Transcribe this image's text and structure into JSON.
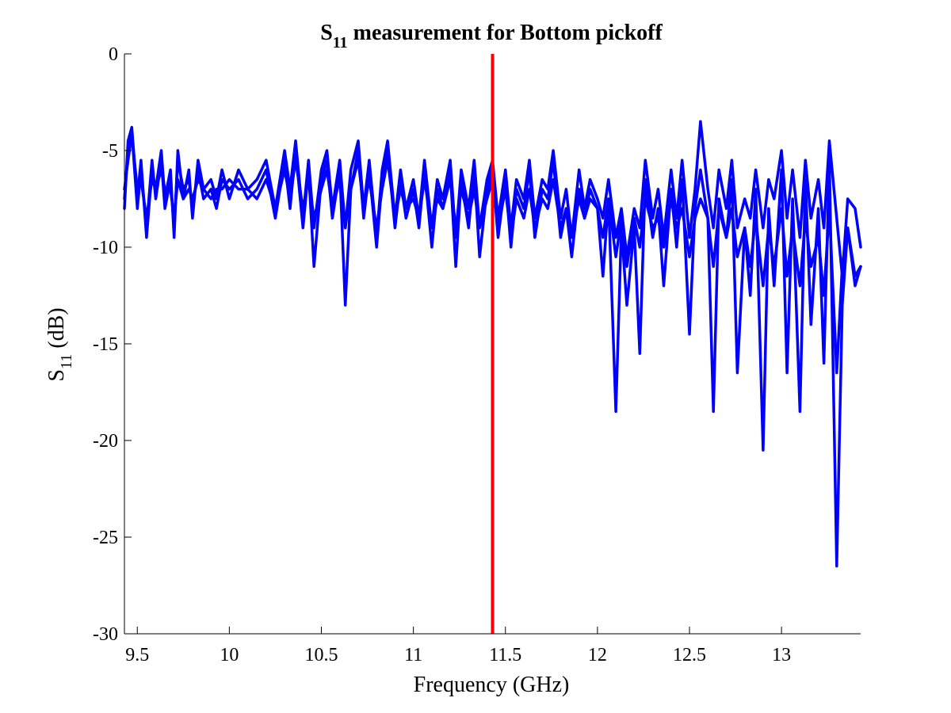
{
  "chart_data": {
    "type": "line",
    "title": {
      "main": "S",
      "sub": "11",
      "rest": " measurement for Bottom pickoff"
    },
    "xlabel": "Frequency (GHz)",
    "ylabel": {
      "main": "S",
      "sub": "11",
      "rest": " (dB)"
    },
    "xlim": [
      9.43,
      13.43
    ],
    "ylim": [
      -30,
      0
    ],
    "xticks": [
      9.5,
      10,
      10.5,
      11,
      11.5,
      12,
      12.5,
      13
    ],
    "xtick_labels": [
      "9.5",
      "10",
      "10.5",
      "11",
      "11.5",
      "12",
      "12.5",
      "13"
    ],
    "yticks": [
      0,
      -5,
      -10,
      -15,
      -20,
      -25,
      -30
    ],
    "ytick_labels": [
      "0",
      "-5",
      "-10",
      "-15",
      "-20",
      "-25",
      "-30"
    ],
    "grid": false,
    "series_color": "#0000ff",
    "marker_color": "#ff0000",
    "vertical_marker_x": 11.43,
    "series": [
      {
        "x": [
          9.43,
          9.45,
          9.47,
          9.5,
          9.52,
          9.55,
          9.58,
          9.6,
          9.63,
          9.65,
          9.68,
          9.7,
          9.72,
          9.75,
          9.78,
          9.8,
          9.83,
          9.86,
          9.9,
          9.93,
          9.96,
          10.0,
          10.05,
          10.1,
          10.15,
          10.2,
          10.25,
          10.3,
          10.33,
          10.36,
          10.4,
          10.43,
          10.46,
          10.5,
          10.53,
          10.56,
          10.6,
          10.63,
          10.66,
          10.7,
          10.73,
          10.76,
          10.8,
          10.83,
          10.86,
          10.9,
          10.93,
          10.96,
          11.0,
          11.03,
          11.06,
          11.1,
          11.13,
          11.16,
          11.2,
          11.23,
          11.26,
          11.3,
          11.33,
          11.36,
          11.4,
          11.43,
          11.46,
          11.5,
          11.53,
          11.56,
          11.6,
          11.63,
          11.66,
          11.7,
          11.73,
          11.76,
          11.8,
          11.83,
          11.86,
          11.9,
          11.93,
          11.96,
          12.0,
          12.03,
          12.06,
          12.1,
          12.13,
          12.16,
          12.2,
          12.23,
          12.26,
          12.3,
          12.33,
          12.36,
          12.4,
          12.43,
          12.46,
          12.5,
          12.53,
          12.56,
          12.6,
          12.63,
          12.66,
          12.7,
          12.73,
          12.76,
          12.8,
          12.83,
          12.86,
          12.9,
          12.93,
          12.96,
          13.0,
          13.03,
          13.06,
          13.1,
          13.13,
          13.16,
          13.2,
          13.23,
          13.26,
          13.3,
          13.33,
          13.36,
          13.4,
          13.43
        ],
        "y": [
          -8.0,
          -4.5,
          -3.8,
          -7.5,
          -5.5,
          -9.5,
          -6.0,
          -7.0,
          -5.0,
          -7.5,
          -6.0,
          -9.5,
          -5.0,
          -7.5,
          -6.0,
          -8.5,
          -5.5,
          -7.0,
          -6.5,
          -7.5,
          -6.0,
          -7.5,
          -6.0,
          -7.0,
          -6.5,
          -5.5,
          -8.0,
          -5.0,
          -7.0,
          -4.5,
          -8.5,
          -5.5,
          -9.0,
          -6.0,
          -5.0,
          -8.0,
          -5.5,
          -9.0,
          -6.0,
          -4.5,
          -8.0,
          -5.5,
          -9.5,
          -6.0,
          -4.5,
          -8.5,
          -6.0,
          -8.0,
          -6.5,
          -8.5,
          -5.5,
          -9.0,
          -6.5,
          -7.5,
          -5.5,
          -9.5,
          -6.0,
          -8.0,
          -5.5,
          -9.0,
          -6.5,
          -5.5,
          -8.5,
          -6.0,
          -9.0,
          -6.5,
          -7.5,
          -5.5,
          -8.5,
          -6.5,
          -7.0,
          -5.0,
          -8.5,
          -7.0,
          -9.5,
          -6.0,
          -8.0,
          -6.5,
          -7.5,
          -8.5,
          -6.5,
          -9.5,
          -8.0,
          -10.5,
          -8.0,
          -9.0,
          -5.5,
          -8.5,
          -7.0,
          -9.5,
          -6.0,
          -8.5,
          -5.5,
          -9.5,
          -7.0,
          -3.5,
          -7.0,
          -9.0,
          -6.0,
          -8.0,
          -5.5,
          -9.0,
          -7.5,
          -8.5,
          -6.0,
          -9.0,
          -6.5,
          -7.5,
          -5.0,
          -8.5,
          -6.0,
          -9.5,
          -5.5,
          -8.5,
          -6.5,
          -9.0,
          -4.5,
          -8.5,
          -11.5,
          -7.5,
          -8.0,
          -10.0
        ]
      },
      {
        "x": [
          9.43,
          9.45,
          9.47,
          9.5,
          9.52,
          9.55,
          9.58,
          9.6,
          9.63,
          9.65,
          9.68,
          9.7,
          9.72,
          9.75,
          9.78,
          9.8,
          9.83,
          9.86,
          9.9,
          9.93,
          9.96,
          10.0,
          10.05,
          10.1,
          10.15,
          10.2,
          10.25,
          10.3,
          10.33,
          10.36,
          10.4,
          10.43,
          10.46,
          10.5,
          10.53,
          10.56,
          10.6,
          10.63,
          10.66,
          10.7,
          10.73,
          10.76,
          10.8,
          10.83,
          10.86,
          10.9,
          10.93,
          10.96,
          11.0,
          11.03,
          11.06,
          11.1,
          11.13,
          11.16,
          11.2,
          11.23,
          11.26,
          11.3,
          11.33,
          11.36,
          11.4,
          11.43,
          11.46,
          11.5,
          11.53,
          11.56,
          11.6,
          11.63,
          11.66,
          11.7,
          11.73,
          11.76,
          11.8,
          11.83,
          11.86,
          11.9,
          11.93,
          11.96,
          12.0,
          12.03,
          12.06,
          12.1,
          12.13,
          12.16,
          12.2,
          12.23,
          12.26,
          12.3,
          12.33,
          12.36,
          12.4,
          12.43,
          12.46,
          12.5,
          12.53,
          12.56,
          12.6,
          12.63,
          12.66,
          12.7,
          12.73,
          12.76,
          12.8,
          12.83,
          12.86,
          12.9,
          12.93,
          12.96,
          13.0,
          13.03,
          13.06,
          13.1,
          13.13,
          13.16,
          13.2,
          13.23,
          13.26,
          13.3,
          13.33,
          13.36,
          13.4,
          13.43
        ],
        "y": [
          -7.5,
          -5.0,
          -4.0,
          -8.0,
          -6.0,
          -9.0,
          -5.5,
          -7.5,
          -5.5,
          -8.0,
          -6.5,
          -9.0,
          -5.5,
          -7.0,
          -6.5,
          -8.0,
          -6.0,
          -7.5,
          -7.0,
          -8.0,
          -6.5,
          -7.0,
          -6.5,
          -7.5,
          -7.0,
          -6.0,
          -8.5,
          -5.5,
          -8.0,
          -5.0,
          -9.0,
          -6.0,
          -11.0,
          -6.5,
          -5.5,
          -8.5,
          -6.0,
          -13.0,
          -7.0,
          -5.0,
          -8.5,
          -6.0,
          -10.0,
          -6.5,
          -5.0,
          -9.0,
          -6.5,
          -8.5,
          -7.0,
          -9.0,
          -6.0,
          -10.0,
          -7.0,
          -8.0,
          -6.0,
          -11.0,
          -6.5,
          -9.0,
          -6.0,
          -10.5,
          -7.0,
          -6.0,
          -9.5,
          -6.5,
          -10.0,
          -7.0,
          -8.0,
          -6.0,
          -9.5,
          -7.0,
          -7.5,
          -5.5,
          -9.5,
          -8.0,
          -10.5,
          -7.0,
          -8.5,
          -7.0,
          -8.0,
          -11.5,
          -7.5,
          -18.5,
          -9.0,
          -13.0,
          -9.0,
          -15.5,
          -6.5,
          -9.5,
          -8.0,
          -12.0,
          -7.0,
          -10.0,
          -6.5,
          -14.5,
          -8.0,
          -6.0,
          -8.5,
          -18.5,
          -7.5,
          -9.5,
          -6.5,
          -16.5,
          -9.0,
          -12.5,
          -7.0,
          -20.5,
          -8.0,
          -12.0,
          -6.0,
          -16.5,
          -7.5,
          -18.5,
          -6.5,
          -14.0,
          -8.0,
          -16.0,
          -5.5,
          -26.5,
          -13.0,
          -9.0,
          -12.0,
          -11.0
        ]
      },
      {
        "x": [
          9.43,
          9.45,
          9.47,
          9.5,
          9.52,
          9.55,
          9.58,
          9.6,
          9.63,
          9.65,
          9.68,
          9.7,
          9.72,
          9.75,
          9.78,
          9.8,
          9.83,
          9.86,
          9.9,
          9.93,
          9.96,
          10.0,
          10.05,
          10.1,
          10.15,
          10.2,
          10.25,
          10.3,
          10.33,
          10.36,
          10.4,
          10.43,
          10.46,
          10.5,
          10.53,
          10.56,
          10.6,
          10.63,
          10.66,
          10.7,
          10.73,
          10.76,
          10.8,
          10.83,
          10.86,
          10.9,
          10.93,
          10.96,
          11.0,
          11.03,
          11.06,
          11.1,
          11.13,
          11.16,
          11.2,
          11.23,
          11.26,
          11.3,
          11.33,
          11.36,
          11.4,
          11.43,
          11.46,
          11.5,
          11.53,
          11.56,
          11.6,
          11.63,
          11.66,
          11.7,
          11.73,
          11.76,
          11.8,
          11.83,
          11.86,
          11.9,
          11.93,
          11.96,
          12.0,
          12.03,
          12.06,
          12.1,
          12.13,
          12.16,
          12.2,
          12.23,
          12.26,
          12.3,
          12.33,
          12.36,
          12.4,
          12.43,
          12.46,
          12.5,
          12.53,
          12.56,
          12.6,
          12.63,
          12.66,
          12.7,
          12.73,
          12.76,
          12.8,
          12.83,
          12.86,
          12.9,
          12.93,
          12.96,
          13.0,
          13.03,
          13.06,
          13.1,
          13.13,
          13.16,
          13.2,
          13.23,
          13.26,
          13.3,
          13.33,
          13.36,
          13.4,
          13.43
        ],
        "y": [
          -7.0,
          -5.5,
          -4.2,
          -7.0,
          -6.5,
          -8.5,
          -6.5,
          -7.0,
          -6.0,
          -7.0,
          -7.0,
          -8.5,
          -6.5,
          -7.5,
          -7.0,
          -7.5,
          -6.5,
          -7.0,
          -7.5,
          -7.0,
          -7.0,
          -6.5,
          -7.0,
          -7.0,
          -7.5,
          -6.5,
          -8.0,
          -6.0,
          -7.5,
          -5.5,
          -8.0,
          -6.5,
          -8.5,
          -7.0,
          -6.0,
          -8.0,
          -6.5,
          -9.0,
          -7.0,
          -5.5,
          -8.0,
          -6.5,
          -9.0,
          -7.0,
          -5.5,
          -8.5,
          -7.0,
          -8.0,
          -7.5,
          -8.5,
          -6.5,
          -9.0,
          -7.5,
          -8.0,
          -6.5,
          -9.0,
          -7.0,
          -8.5,
          -7.0,
          -9.0,
          -7.5,
          -6.5,
          -9.0,
          -7.0,
          -9.5,
          -7.5,
          -8.5,
          -7.0,
          -9.0,
          -7.5,
          -8.0,
          -6.5,
          -9.0,
          -8.0,
          -9.5,
          -7.5,
          -8.5,
          -7.5,
          -8.0,
          -9.5,
          -7.5,
          -10.5,
          -8.5,
          -11.0,
          -8.5,
          -10.0,
          -7.5,
          -9.0,
          -8.5,
          -10.0,
          -7.5,
          -9.0,
          -8.0,
          -10.5,
          -8.5,
          -7.5,
          -8.5,
          -11.0,
          -8.0,
          -9.5,
          -8.0,
          -10.5,
          -9.0,
          -11.0,
          -8.5,
          -12.0,
          -9.0,
          -11.0,
          -8.0,
          -11.5,
          -9.0,
          -12.0,
          -8.5,
          -11.0,
          -9.5,
          -12.5,
          -8.0,
          -16.5,
          -11.0,
          -9.0,
          -11.5,
          -11.0
        ]
      }
    ]
  }
}
